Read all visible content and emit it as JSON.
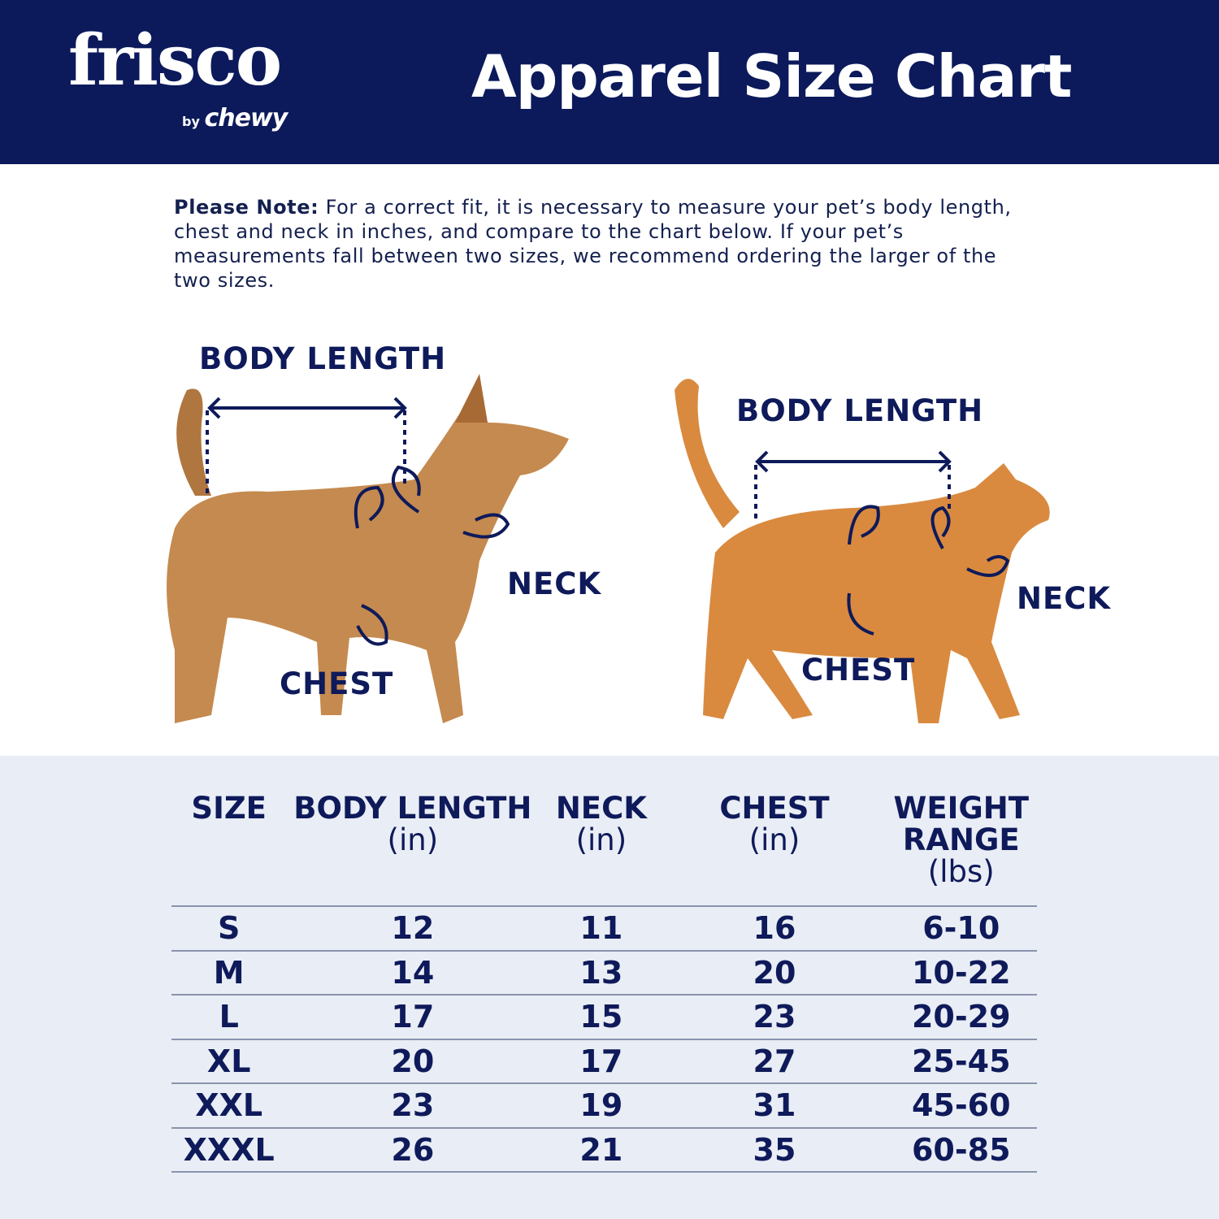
{
  "header": {
    "logo_main": "frisco",
    "logo_by": "by",
    "logo_brand": "chewy",
    "title": "Apparel Size Chart"
  },
  "note": {
    "bold": "Please Note:",
    "text": " For a correct fit, it is necessary to measure your pet’s body length, chest and neck in inches, and compare to the chart below. If your pet’s measurements fall between two sizes, we recommend ordering the larger of the two sizes."
  },
  "dog": {
    "body_length": "BODY LENGTH",
    "neck": "NECK",
    "chest": "CHEST"
  },
  "cat": {
    "body_length": "BODY LENGTH",
    "neck": "NECK",
    "chest": "CHEST"
  },
  "colors": {
    "navy": "#0c1a5b",
    "table_bg": "#e9edf5",
    "dog": "#c58a4f",
    "cat": "#d98a3f"
  },
  "table": {
    "headers": [
      {
        "title": "SIZE",
        "unit": ""
      },
      {
        "title": "BODY LENGTH",
        "unit": "(in)"
      },
      {
        "title": "NECK",
        "unit": "(in)"
      },
      {
        "title": "CHEST",
        "unit": "(in)"
      },
      {
        "title": "WEIGHT RANGE",
        "unit": "(lbs)"
      }
    ],
    "rows": [
      [
        "S",
        "12",
        "11",
        "16",
        "6-10"
      ],
      [
        "M",
        "14",
        "13",
        "20",
        "10-22"
      ],
      [
        "L",
        "17",
        "15",
        "23",
        "20-29"
      ],
      [
        "XL",
        "20",
        "17",
        "27",
        "25-45"
      ],
      [
        "XXL",
        "23",
        "19",
        "31",
        "45-60"
      ],
      [
        "XXXL",
        "26",
        "21",
        "35",
        "60-85"
      ]
    ]
  }
}
